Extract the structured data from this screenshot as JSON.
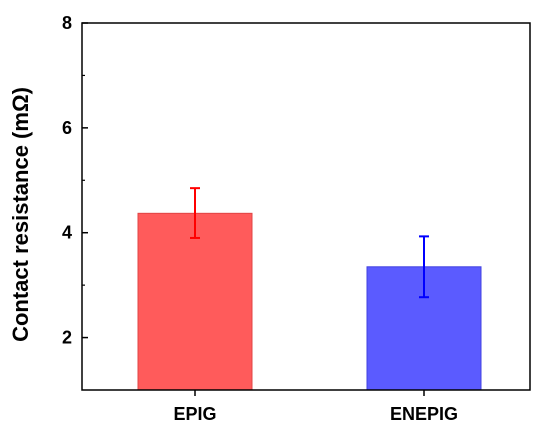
{
  "chart_data": {
    "type": "bar",
    "title": "",
    "xlabel": "",
    "ylabel": "Contact resistance (mΩ)",
    "ylim": [
      1,
      8
    ],
    "y_ticks": [
      2,
      4,
      6,
      8
    ],
    "y_minor_ticks": [
      3,
      5,
      7
    ],
    "grid": false,
    "legend": "none",
    "categories": [
      "EPIG",
      "ENEPIG"
    ],
    "values": [
      4.37,
      3.35
    ],
    "error_low": [
      3.9,
      2.77
    ],
    "error_high": [
      4.85,
      3.93
    ],
    "bar_colors": [
      "#ff5b5b",
      "#5b5bff"
    ],
    "bar_edge_colors": [
      "#e04545",
      "#4040e0"
    ],
    "error_colors": [
      "#ff0000",
      "#0000ff"
    ],
    "y_tick_labels": [
      "2",
      "4",
      "6",
      "8"
    ]
  }
}
